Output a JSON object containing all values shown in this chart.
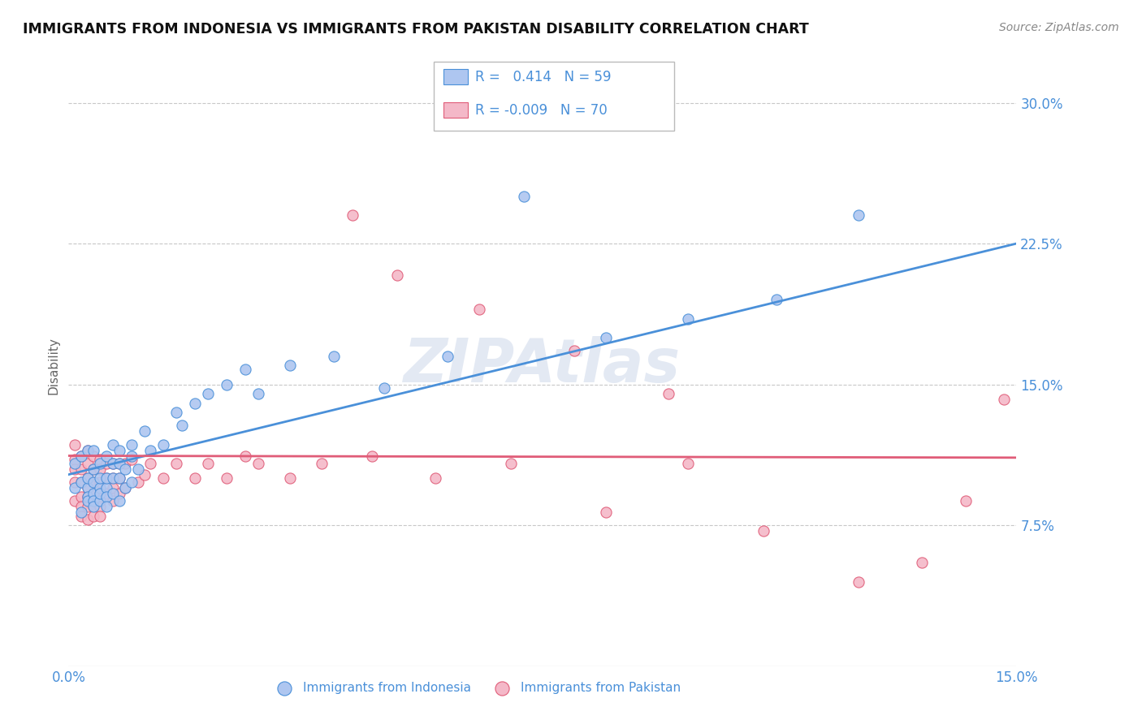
{
  "title": "IMMIGRANTS FROM INDONESIA VS IMMIGRANTS FROM PAKISTAN DISABILITY CORRELATION CHART",
  "source": "Source: ZipAtlas.com",
  "ylabel": "Disability",
  "xlim": [
    0.0,
    0.15
  ],
  "ylim": [
    0.0,
    0.32
  ],
  "yticks": [
    0.075,
    0.15,
    0.225,
    0.3
  ],
  "ytick_labels": [
    "7.5%",
    "15.0%",
    "22.5%",
    "30.0%"
  ],
  "xticks": [
    0.0,
    0.15
  ],
  "xtick_labels": [
    "0.0%",
    "15.0%"
  ],
  "grid_color": "#c8c8c8",
  "background_color": "#ffffff",
  "indonesia_color": "#aec6f0",
  "pakistan_color": "#f4b8c8",
  "indonesia_line_color": "#4a90d9",
  "pakistan_line_color": "#e05c78",
  "indonesia_R": 0.414,
  "indonesia_N": 59,
  "pakistan_R": -0.009,
  "pakistan_N": 70,
  "indo_line_x0": 0.0,
  "indo_line_y0": 0.102,
  "indo_line_x1": 0.15,
  "indo_line_y1": 0.225,
  "pak_line_x0": 0.0,
  "pak_line_y0": 0.112,
  "pak_line_x1": 0.15,
  "pak_line_y1": 0.111,
  "indonesia_scatter_x": [
    0.001,
    0.001,
    0.002,
    0.002,
    0.002,
    0.003,
    0.003,
    0.003,
    0.003,
    0.003,
    0.004,
    0.004,
    0.004,
    0.004,
    0.004,
    0.004,
    0.005,
    0.005,
    0.005,
    0.005,
    0.005,
    0.006,
    0.006,
    0.006,
    0.006,
    0.006,
    0.007,
    0.007,
    0.007,
    0.007,
    0.008,
    0.008,
    0.008,
    0.008,
    0.009,
    0.009,
    0.01,
    0.01,
    0.01,
    0.011,
    0.012,
    0.013,
    0.015,
    0.017,
    0.018,
    0.02,
    0.022,
    0.025,
    0.028,
    0.03,
    0.035,
    0.042,
    0.05,
    0.06,
    0.072,
    0.085,
    0.098,
    0.112,
    0.125
  ],
  "indonesia_scatter_y": [
    0.108,
    0.095,
    0.112,
    0.098,
    0.082,
    0.095,
    0.09,
    0.1,
    0.115,
    0.088,
    0.092,
    0.098,
    0.105,
    0.088,
    0.085,
    0.115,
    0.095,
    0.1,
    0.088,
    0.092,
    0.108,
    0.095,
    0.1,
    0.09,
    0.112,
    0.085,
    0.1,
    0.108,
    0.092,
    0.118,
    0.108,
    0.1,
    0.115,
    0.088,
    0.105,
    0.095,
    0.112,
    0.098,
    0.118,
    0.105,
    0.125,
    0.115,
    0.118,
    0.135,
    0.128,
    0.14,
    0.145,
    0.15,
    0.158,
    0.145,
    0.16,
    0.165,
    0.148,
    0.165,
    0.25,
    0.175,
    0.185,
    0.195,
    0.24
  ],
  "pakistan_scatter_x": [
    0.001,
    0.001,
    0.001,
    0.001,
    0.001,
    0.002,
    0.002,
    0.002,
    0.002,
    0.002,
    0.002,
    0.003,
    0.003,
    0.003,
    0.003,
    0.003,
    0.003,
    0.003,
    0.004,
    0.004,
    0.004,
    0.004,
    0.004,
    0.004,
    0.005,
    0.005,
    0.005,
    0.005,
    0.005,
    0.005,
    0.006,
    0.006,
    0.006,
    0.007,
    0.007,
    0.007,
    0.007,
    0.008,
    0.008,
    0.008,
    0.009,
    0.009,
    0.01,
    0.011,
    0.012,
    0.013,
    0.015,
    0.017,
    0.02,
    0.022,
    0.025,
    0.028,
    0.03,
    0.035,
    0.04,
    0.048,
    0.058,
    0.07,
    0.085,
    0.098,
    0.045,
    0.052,
    0.065,
    0.08,
    0.095,
    0.11,
    0.125,
    0.135,
    0.142,
    0.148
  ],
  "pakistan_scatter_y": [
    0.118,
    0.11,
    0.105,
    0.098,
    0.088,
    0.112,
    0.105,
    0.098,
    0.09,
    0.085,
    0.08,
    0.115,
    0.108,
    0.1,
    0.095,
    0.09,
    0.085,
    0.078,
    0.112,
    0.105,
    0.098,
    0.092,
    0.085,
    0.08,
    0.11,
    0.105,
    0.098,
    0.092,
    0.085,
    0.08,
    0.108,
    0.1,
    0.092,
    0.108,
    0.1,
    0.095,
    0.088,
    0.108,
    0.1,
    0.092,
    0.108,
    0.095,
    0.11,
    0.098,
    0.102,
    0.108,
    0.1,
    0.108,
    0.1,
    0.108,
    0.1,
    0.112,
    0.108,
    0.1,
    0.108,
    0.112,
    0.1,
    0.108,
    0.082,
    0.108,
    0.24,
    0.208,
    0.19,
    0.168,
    0.145,
    0.072,
    0.045,
    0.055,
    0.088,
    0.142
  ]
}
